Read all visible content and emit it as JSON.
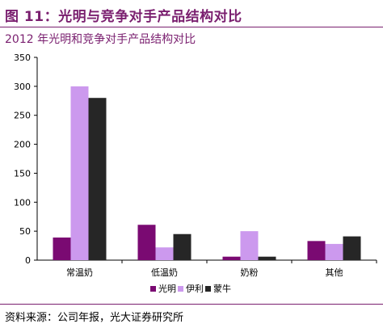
{
  "header": {
    "figure_title": "图 11：光明与竞争对手产品结构对比",
    "subtitle": "2012 年光明和竞争对手产品结构对比"
  },
  "footer": {
    "source": "资料来源：公司年报，光大证券研究所"
  },
  "chart_data": {
    "type": "bar",
    "categories": [
      "常温奶",
      "低温奶",
      "奶粉",
      "其他"
    ],
    "series": [
      {
        "name": "光明",
        "color": "#7a0a72",
        "values": [
          39,
          61,
          6,
          33
        ]
      },
      {
        "name": "伊利",
        "color": "#cc99ee",
        "values": [
          300,
          22,
          50,
          28
        ]
      },
      {
        "name": "蒙牛",
        "color": "#262626",
        "values": [
          280,
          45,
          6,
          41
        ]
      }
    ],
    "ylim": [
      0,
      350
    ],
    "yticks": [
      0,
      50,
      100,
      150,
      200,
      250,
      300,
      350
    ],
    "legend_position": "bottom"
  }
}
